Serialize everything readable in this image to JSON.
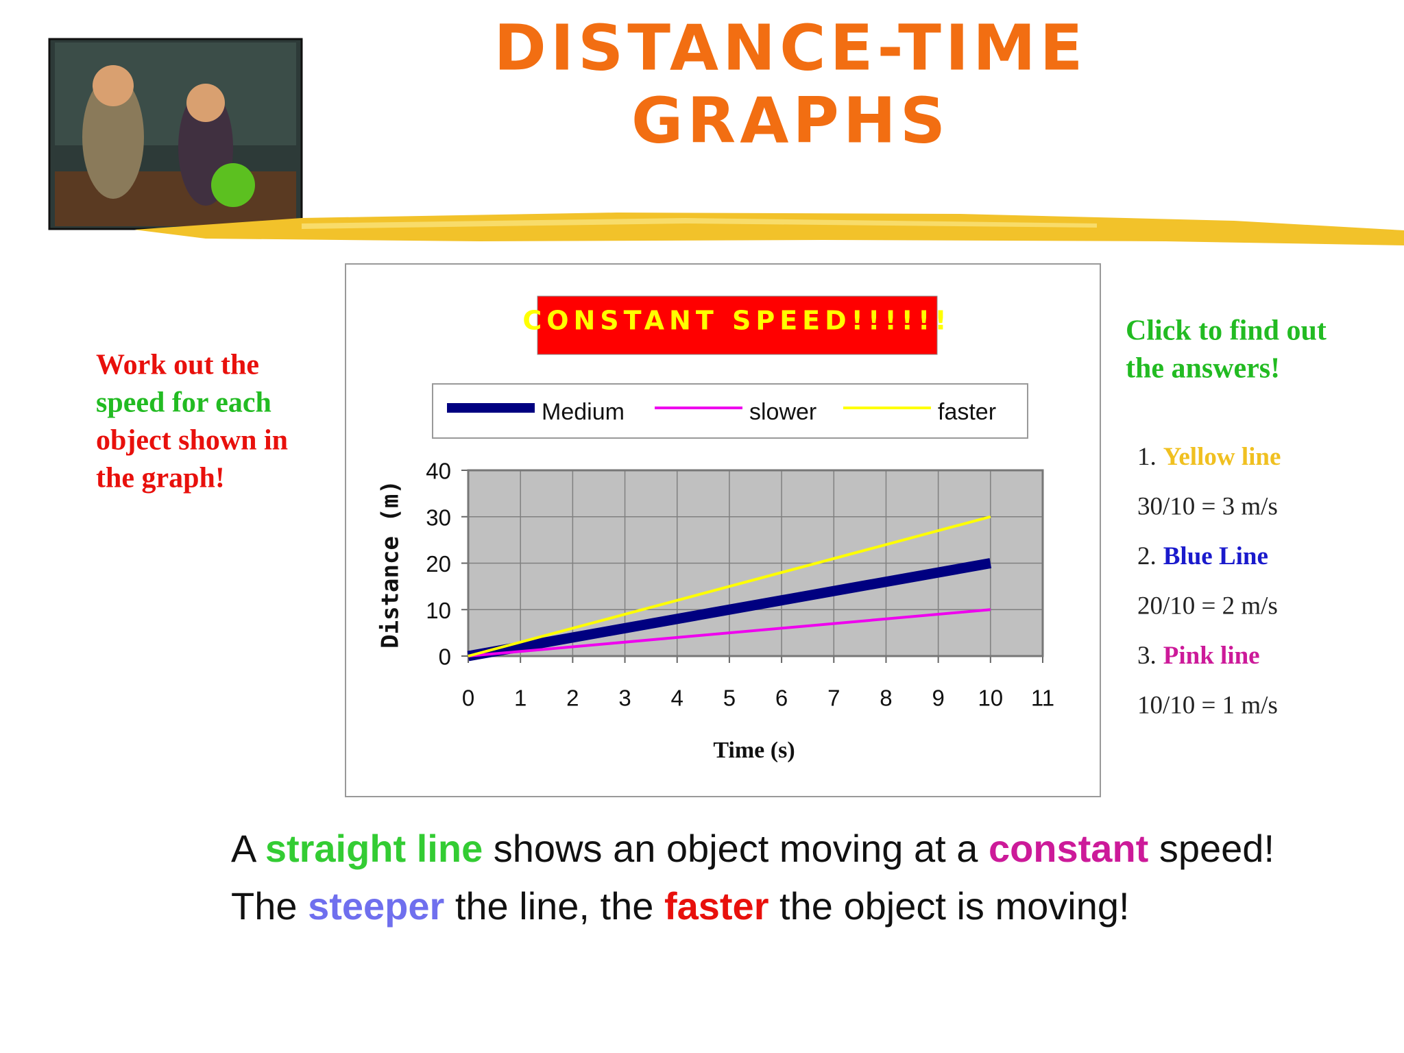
{
  "header": {
    "title": [
      "DISTANCE-TIME",
      "GRAPHS"
    ],
    "color": "#f26e12"
  },
  "left_note": [
    {
      "text": "Work out the",
      "color": "#e8100c"
    },
    {
      "text": "speed for each",
      "color": "#22bb22"
    },
    {
      "text": "object shown in",
      "color": "#e8100c"
    },
    {
      "text": "the graph!",
      "color": "#e8100c"
    }
  ],
  "answers": {
    "prompt": {
      "lines": [
        "Click to find out",
        "the answers!"
      ],
      "color": "#22bb22"
    },
    "items": [
      {
        "number": "1.",
        "name": "Yellow line",
        "color": "#f0c020",
        "result": "30/10 = 3 m/s"
      },
      {
        "number": "2.",
        "name": "Blue Line",
        "color": "#1a1acc",
        "result": "20/10 = 2 m/s"
      },
      {
        "number": "3.",
        "name": "Pink line",
        "color": "#cc1a99",
        "result": "10/10 = 1 m/s"
      }
    ]
  },
  "chart_data": {
    "type": "line",
    "title": "CONSTANT SPEED!!!!!!",
    "x_label": "Time (s)",
    "y_label": "Distance (m)",
    "x": [
      0,
      10
    ],
    "series": [
      {
        "name": "Medium",
        "color": "#000080",
        "values": [
          0,
          20
        ]
      },
      {
        "name": "slower",
        "color": "#ee00ee",
        "values": [
          0,
          10
        ]
      },
      {
        "name": "faster",
        "color": "#ffff00",
        "values": [
          0,
          30
        ]
      }
    ],
    "xlim": [
      0,
      11
    ],
    "xticks": [
      0,
      1,
      2,
      3,
      4,
      5,
      6,
      7,
      8,
      9,
      10,
      11
    ],
    "ylim": [
      0,
      40
    ],
    "yticks": [
      0,
      10,
      20,
      30,
      40
    ],
    "grid": true,
    "legend": "top",
    "background": "#c0c0c0"
  },
  "statements": [
    [
      {
        "text": "A "
      },
      {
        "text": "straight line",
        "color": "#33cc33"
      },
      {
        "text": " shows an object moving at a "
      },
      {
        "text": "constant",
        "color": "#cc1a99"
      },
      {
        "text": " speed!"
      }
    ],
    [
      {
        "text": "The "
      },
      {
        "text": "steeper",
        "color": "#6f6fee"
      },
      {
        "text": " the line, the "
      },
      {
        "text": "faster",
        "color": "#e8100c"
      },
      {
        "text": " the object is moving!"
      }
    ]
  ]
}
